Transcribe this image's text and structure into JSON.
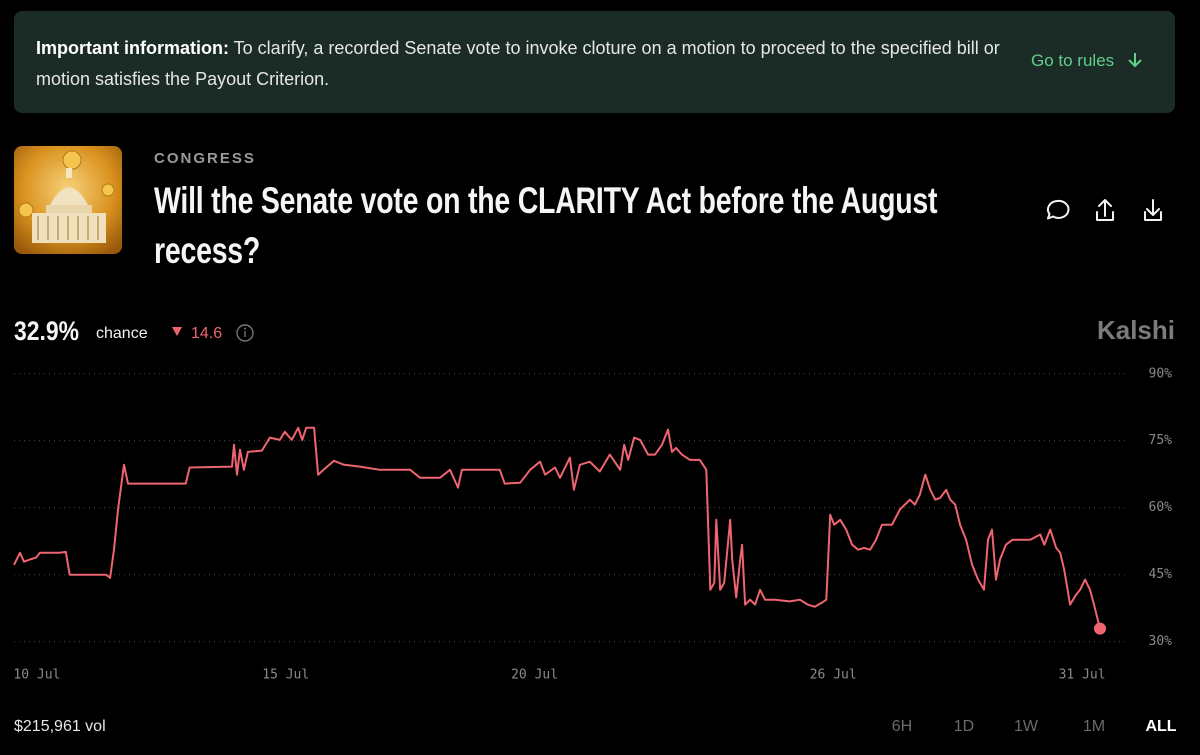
{
  "banner": {
    "label": "Important information:",
    "text": "To clarify, a recorded Senate vote to invoke cloture on a motion to proceed to the specified bill or motion satisfies the Payout Criterion.",
    "link": "Go to rules"
  },
  "market": {
    "category": "CONGRESS",
    "title": "Will the Senate vote on the CLARITY Act before the August recess?",
    "chance": "32.9%",
    "chance_label": "chance",
    "change": "14.6",
    "brand": "Kalshi"
  },
  "chart_data": {
    "type": "line",
    "color": "#ee6570",
    "x": [
      9.54,
      9.66,
      9.74,
      9.86,
      9.98,
      10.06,
      10.46,
      10.58,
      10.66,
      11.39,
      11.47,
      11.55,
      11.63,
      11.75,
      11.83,
      12.99,
      13.07,
      13.92,
      13.96,
      14.02,
      14.08,
      14.16,
      14.24,
      14.52,
      14.68,
      14.88,
      14.98,
      15.12,
      15.25,
      15.33,
      15.41,
      15.57,
      15.65,
      15.81,
      15.97,
      16.17,
      16.49,
      16.89,
      17.5,
      17.7,
      18.1,
      18.3,
      18.46,
      18.54,
      19.3,
      19.4,
      19.71,
      19.91,
      20.11,
      20.21,
      20.41,
      20.51,
      20.71,
      20.79,
      20.91,
      21.11,
      21.31,
      21.51,
      21.72,
      21.8,
      21.88,
      22.0,
      22.12,
      22.28,
      22.42,
      22.56,
      22.68,
      22.76,
      22.84,
      22.96,
      23.12,
      23.32,
      23.45,
      23.53,
      23.61,
      23.65,
      23.73,
      23.81,
      23.93,
      23.97,
      24.05,
      24.13,
      24.17,
      24.23,
      24.33,
      24.43,
      24.53,
      24.63,
      24.83,
      25.13,
      25.33,
      25.49,
      25.63,
      25.77,
      25.86,
      25.94,
      26.02,
      26.14,
      26.26,
      26.38,
      26.5,
      26.62,
      26.74,
      26.86,
      26.98,
      27.18,
      27.34,
      27.54,
      27.64,
      27.74,
      27.85,
      27.95,
      28.05,
      28.15,
      28.27,
      28.35,
      28.45,
      28.55,
      28.67,
      28.79,
      28.91,
      29.03,
      29.11,
      29.19,
      29.27,
      29.35,
      29.47,
      29.6,
      29.96,
      30.16,
      30.24,
      30.36,
      30.48,
      30.56,
      30.64,
      30.76,
      30.88,
      30.96,
      31.06,
      31.16,
      31.24,
      31.36
    ],
    "values": [
      47.2,
      49.9,
      47.9,
      48.4,
      48.8,
      49.9,
      49.9,
      50.1,
      45,
      45,
      44.3,
      50.6,
      59.6,
      69.6,
      65.4,
      65.4,
      69,
      69.2,
      74.1,
      67.4,
      73,
      68.5,
      72.5,
      72.8,
      75.7,
      75.2,
      77,
      75.2,
      77.9,
      75.2,
      77.9,
      77.9,
      67.4,
      69,
      70.5,
      69.6,
      69.2,
      68.5,
      68.5,
      66.7,
      66.7,
      68.5,
      64.5,
      68.5,
      68.5,
      65.4,
      65.6,
      68.5,
      70.3,
      67.4,
      69,
      66.7,
      71.2,
      64,
      69.6,
      70.3,
      68.1,
      71.9,
      68.5,
      74.1,
      70.7,
      75.7,
      75.2,
      71.9,
      71.9,
      74.1,
      77.5,
      72.5,
      73.4,
      71.9,
      70.7,
      70.7,
      68.5,
      41.6,
      43.2,
      57.3,
      41.6,
      43.2,
      57.3,
      48.4,
      39.9,
      48.4,
      51.7,
      38.3,
      39.4,
      38.3,
      41.6,
      39.4,
      39.4,
      39,
      39.4,
      38.3,
      37.8,
      38.7,
      39.4,
      58.4,
      56.2,
      57.3,
      55.1,
      51.7,
      50.6,
      51,
      50.6,
      52.8,
      56.2,
      56.2,
      59.6,
      61.8,
      60.7,
      62.9,
      67.4,
      64,
      61.8,
      62.2,
      64,
      61.8,
      60.7,
      56.2,
      52.8,
      47.2,
      43.9,
      41.6,
      52.8,
      55.1,
      43.9,
      48.4,
      51.7,
      52.8,
      52.8,
      54,
      51.7,
      55.1,
      51,
      49.9,
      46.1,
      38.3,
      40.5,
      41.6,
      43.9,
      41.6,
      38.3,
      32.9
    ],
    "xlim": [
      9.54,
      31.36
    ],
    "xticks": [
      {
        "value": 10,
        "label": "10 Jul"
      },
      {
        "value": 15,
        "label": "15 Jul"
      },
      {
        "value": 20,
        "label": "20 Jul"
      },
      {
        "value": 26,
        "label": "26 Jul"
      },
      {
        "value": 31,
        "label": "31 Jul"
      }
    ],
    "ylim": [
      27,
      93
    ],
    "yticks": [
      {
        "value": 90,
        "label": "90%"
      },
      {
        "value": 75,
        "label": "75%"
      },
      {
        "value": 60,
        "label": "60%"
      },
      {
        "value": 45,
        "label": "45%"
      },
      {
        "value": 30,
        "label": "30%"
      }
    ],
    "grid": true
  },
  "footer": {
    "volume": "$215,961 vol",
    "ranges": [
      "6H",
      "1D",
      "1W",
      "1M",
      "ALL"
    ],
    "active_range": 4
  }
}
